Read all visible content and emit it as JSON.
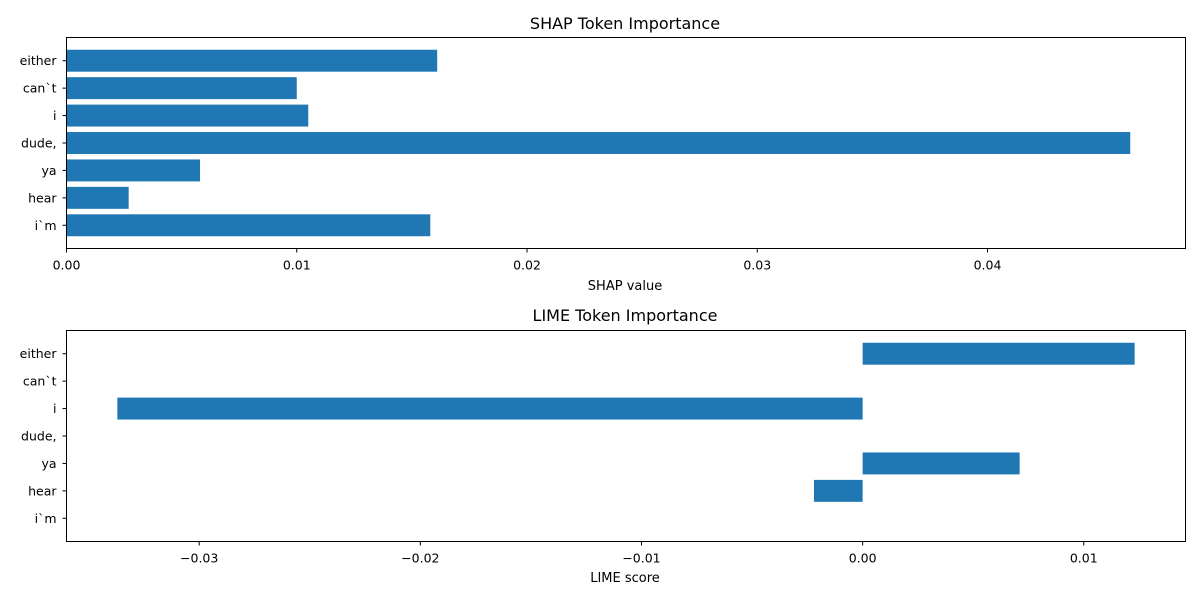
{
  "chart_data": [
    {
      "type": "bar",
      "orientation": "horizontal",
      "title": "SHAP Token Importance",
      "xlabel": "SHAP value",
      "ylabel": "",
      "categories": [
        "either",
        "can`t",
        "i",
        "dude,",
        "ya",
        "hear",
        "i`m"
      ],
      "values": [
        0.0161,
        0.01,
        0.0105,
        0.0462,
        0.0058,
        0.0027,
        0.0158
      ],
      "xlim": [
        0,
        0.0486
      ],
      "xticks": [
        0.0,
        0.01,
        0.02,
        0.03,
        0.04
      ],
      "xtick_labels": [
        "0.00",
        "0.01",
        "0.02",
        "0.03",
        "0.04"
      ],
      "bar_color": "#1f77b4",
      "grid": false,
      "legend": "none"
    },
    {
      "type": "bar",
      "orientation": "horizontal",
      "title": "LIME Token Importance",
      "xlabel": "LIME score",
      "ylabel": "",
      "categories": [
        "either",
        "can`t",
        "i",
        "dude,",
        "ya",
        "hear",
        "i`m"
      ],
      "values": [
        0.0123,
        0.0,
        -0.0337,
        0.0,
        0.0071,
        -0.0022,
        0.0
      ],
      "xlim": [
        -0.036,
        0.0146
      ],
      "xticks": [
        -0.03,
        -0.02,
        -0.01,
        0.0,
        0.01
      ],
      "xtick_labels": [
        "−0.03",
        "−0.02",
        "−0.01",
        "0.00",
        "0.01"
      ],
      "bar_color": "#1f77b4",
      "grid": false,
      "legend": "none"
    }
  ]
}
